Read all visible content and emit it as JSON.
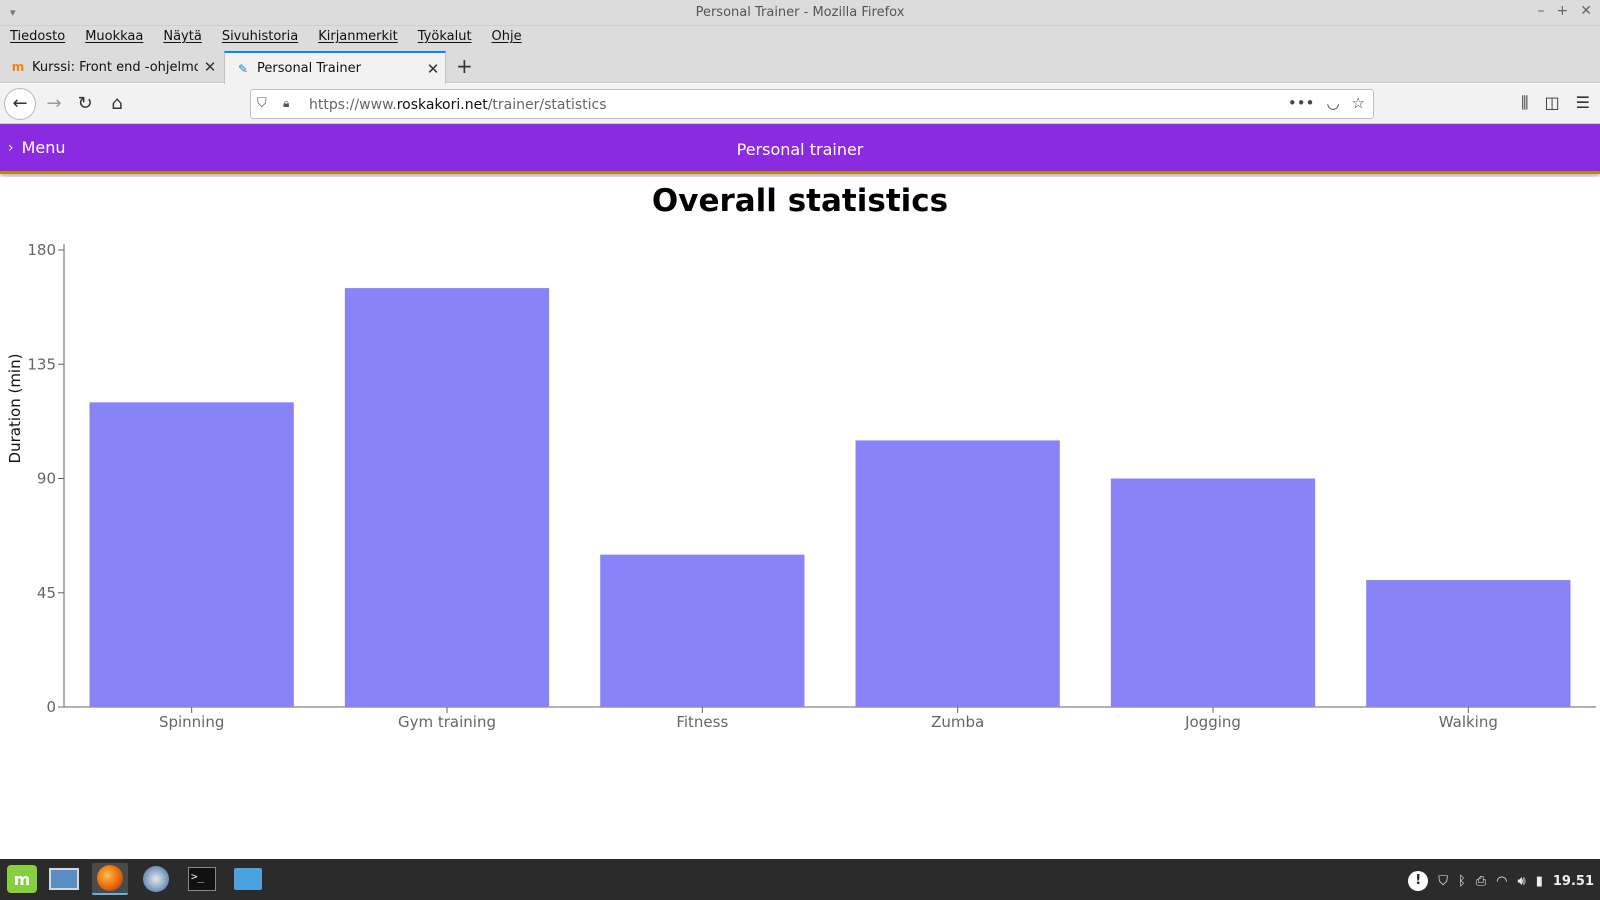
{
  "window": {
    "title": "Personal Trainer - Mozilla Firefox"
  },
  "menubar": [
    "Tiedosto",
    "Muokkaa",
    "Näytä",
    "Sivuhistoria",
    "Kirjanmerkit",
    "Työkalut",
    "Ohje"
  ],
  "tabs": [
    {
      "label": "Kurssi: Front end -ohjelmoi",
      "icon": "moodle-icon"
    },
    {
      "label": "Personal Trainer",
      "icon": "pen-icon"
    }
  ],
  "url": {
    "prefix": "https://www.",
    "host": "roskakori.net",
    "path": "/trainer/statistics"
  },
  "app": {
    "menu_label": "Menu",
    "title": "Personal trainer",
    "accent": "#8a2be2"
  },
  "page": {
    "title": "Overall statistics"
  },
  "chart_data": {
    "type": "bar",
    "categories": [
      "Spinning",
      "Gym training",
      "Fitness",
      "Zumba",
      "Jogging",
      "Walking"
    ],
    "values": [
      120,
      165,
      60,
      105,
      90,
      50
    ],
    "ylabel": "Duration (min)",
    "yticks": [
      0,
      45,
      90,
      135,
      180
    ],
    "ylim": [
      0,
      180
    ],
    "bar_color": "#8884f8",
    "grid": false
  },
  "taskbar": {
    "clock": "19.51"
  }
}
